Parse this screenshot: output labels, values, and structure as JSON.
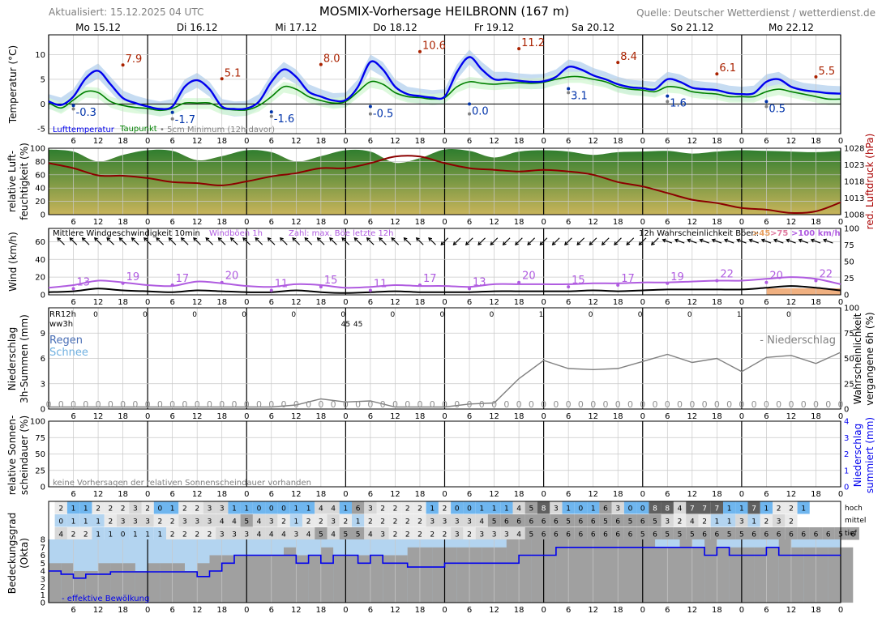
{
  "header": {
    "title": "MOSMIX-Vorhersage HEILBRONN (167 m)",
    "updated": "Aktualisiert: 15.12.2025 04 UTC",
    "source": "Quelle: Deutscher Wetterdienst / wetterdienst.de"
  },
  "days": [
    "Mo 15.12",
    "Di 16.12",
    "Mi 17.12",
    "Do 18.12",
    "Fr 19.12",
    "Sa 20.12",
    "So 21.12",
    "Mo 22.12"
  ],
  "hour_ticks": [
    "6",
    "12",
    "18",
    "0"
  ],
  "colors": {
    "temp": "#0000ee",
    "dew": "#008000",
    "min5": "#808080",
    "max_label": "#aa2200",
    "min_label": "#0033aa",
    "pressure": "#8b0000",
    "gust": "#b05ce0",
    "wind": "#000000",
    "precip_prob": "#808080",
    "cloud_gray": "#a0a0a0",
    "cloud_blue": "#b3d4f0"
  },
  "panels": {
    "temp": {
      "ylabel": "Temperatur (°C)",
      "ylim": [
        -6,
        14
      ],
      "ticks": [
        "-5",
        "0",
        "5",
        "10"
      ],
      "legend": [
        "Lufttemperatur",
        "Taupunkt",
        "• 5cm Minimum (12h davor)"
      ]
    },
    "humidity": {
      "ylabel": "relative Luft-feuchtigkeit (%)",
      "ylabel_lines": [
        "relative Luft-",
        "feuchtigkeit (%)"
      ],
      "ylim": [
        0,
        100
      ],
      "ticks": [
        "0",
        "20",
        "40",
        "60",
        "80",
        "100"
      ],
      "ylabel_right": "red. Luftdruck (hPa)",
      "ylim_right": [
        1008,
        1028
      ],
      "ticks_right": [
        "1008",
        "1013",
        "1018",
        "1023",
        "1028"
      ]
    },
    "wind": {
      "ylabel": "Wind (km/h)",
      "ylim": [
        0,
        75
      ],
      "ticks": [
        "0",
        "20",
        "40",
        "60"
      ],
      "ticks_right": [
        "0",
        "25",
        "50",
        "75",
        "100"
      ],
      "legend": [
        "Mittlere Windgeschwindigkeit 10min",
        "Windböen 1h",
        "Zahl: max. Böe letzte 12h",
        "12h Wahrscheinlichkeit Böen:",
        ">45",
        ">75",
        ">100 km/h"
      ]
    },
    "precip": {
      "ylabel_lines": [
        "Niederschlag",
        "3h-Summen (mm)"
      ],
      "ylim": [
        0,
        12
      ],
      "ticks": [
        "0",
        "3",
        "6",
        "9"
      ],
      "ylabel_right_lines": [
        "Wahrscheinlichkeit",
        "vergangene 6h (%)"
      ],
      "ticks_right": [
        "0",
        "25",
        "50",
        "75",
        "100"
      ],
      "labels": [
        "RR12h",
        "ww3h"
      ],
      "rain": "Regen",
      "snow": "Schnee",
      "prob_legend": "- Niederschlag"
    },
    "sun": {
      "ylabel_lines": [
        "relative Sonnen-",
        "scheindauer (%)"
      ],
      "ticks": [
        "0",
        "25",
        "50",
        "75",
        "100"
      ],
      "ylabel_right_lines": [
        "Niederschlag",
        "summiert (mm)"
      ],
      "ticks_right": [
        "0",
        "1",
        "2",
        "3",
        "4"
      ],
      "note": "keine Vorhersagen der relativen Sonnenscheindauer vorhanden"
    },
    "cloud": {
      "ylabel_lines": [
        "Bedeckungsgrad",
        "(Okta)"
      ],
      "ticks": [
        "0",
        "1",
        "2",
        "3",
        "4",
        "5",
        "6",
        "7",
        "8"
      ],
      "row_labels": [
        "hoch",
        "mittel",
        "tief"
      ],
      "legend": "- effektive Bewölkung"
    }
  },
  "chart_data": {
    "type": "line",
    "x_unit": "hours since 15.12.2025 00 UTC",
    "temperature": {
      "x": [
        0,
        3,
        6,
        9,
        12,
        15,
        18,
        21,
        24,
        27,
        30,
        33,
        36,
        39,
        42,
        45,
        48,
        51,
        54,
        57,
        60,
        63,
        66,
        69,
        72,
        75,
        78,
        81,
        84,
        87,
        90,
        93,
        96,
        99,
        102,
        105,
        108,
        111,
        114,
        117,
        120,
        123,
        126,
        129,
        132,
        135,
        138,
        141,
        144,
        147,
        150,
        153,
        156,
        159,
        162,
        165,
        168,
        171,
        174,
        177,
        180,
        183,
        186,
        189,
        192
      ],
      "air": [
        0.5,
        -0.2,
        1.5,
        5.2,
        6.7,
        4.0,
        1.2,
        0.2,
        -0.5,
        -1.0,
        -0.5,
        3.5,
        4.8,
        3.0,
        -0.5,
        -1.0,
        -0.9,
        0.5,
        4.5,
        7.0,
        5.5,
        2.5,
        1.5,
        0.7,
        0.8,
        3.5,
        8.5,
        7.0,
        3.5,
        2.0,
        1.6,
        1.3,
        1.5,
        6.5,
        9.5,
        7.0,
        5.0,
        5.0,
        4.7,
        4.5,
        4.6,
        5.5,
        7.5,
        7.0,
        5.8,
        5.0,
        4.0,
        3.4,
        3.2,
        3.0,
        5.0,
        4.5,
        3.3,
        3.0,
        2.8,
        2.2,
        2.0,
        2.2,
        4.5,
        5.0,
        3.5,
        2.8,
        2.5,
        2.2,
        2.1
      ],
      "dew": [
        0.3,
        -0.8,
        0.8,
        2.5,
        2.3,
        0.5,
        -0.3,
        -0.7,
        -0.9,
        -1.3,
        -0.9,
        0.2,
        0.2,
        0.2,
        -0.9,
        -1.2,
        -1.2,
        -0.3,
        1.5,
        3.5,
        3.0,
        1.5,
        0.7,
        0.2,
        0.5,
        2.5,
        4.5,
        4.0,
        2.3,
        1.5,
        1.3,
        1.0,
        1.3,
        3.5,
        4.5,
        4.2,
        4.0,
        4.2,
        4.3,
        4.2,
        4.4,
        5.0,
        5.5,
        5.5,
        5.0,
        4.5,
        3.5,
        3.0,
        2.8,
        2.5,
        3.5,
        3.3,
        2.5,
        2.2,
        2.0,
        1.5,
        1.5,
        1.5,
        2.5,
        3.0,
        2.5,
        2.0,
        1.5,
        1.0,
        1.0
      ]
    },
    "temp_max_labels": [
      {
        "x": 18,
        "value": 7.9
      },
      {
        "x": 42,
        "value": 5.1
      },
      {
        "x": 66,
        "value": 8.0
      },
      {
        "x": 90,
        "value": 10.6
      },
      {
        "x": 114,
        "value": 11.2
      },
      {
        "x": 138,
        "value": 8.4
      },
      {
        "x": 162,
        "value": 6.1
      },
      {
        "x": 186,
        "value": 5.5
      }
    ],
    "temp_min_labels": [
      {
        "x": 6,
        "value": -0.3
      },
      {
        "x": 30,
        "value": -1.7
      },
      {
        "x": 54,
        "value": -1.6
      },
      {
        "x": 78,
        "value": -0.5
      },
      {
        "x": 102,
        "value": -0.0
      },
      {
        "x": 126,
        "value": 3.1
      },
      {
        "x": 150,
        "value": 1.6
      },
      {
        "x": 174,
        "value": 0.5
      }
    ],
    "ground_min_5cm": [
      {
        "x": 6,
        "value": -1.0
      },
      {
        "x": 30,
        "value": -3.0
      },
      {
        "x": 54,
        "value": -2.5
      },
      {
        "x": 78,
        "value": -2.0
      },
      {
        "x": 102,
        "value": -2.0
      },
      {
        "x": 126,
        "value": 2.3
      },
      {
        "x": 150,
        "value": 0.5
      },
      {
        "x": 174,
        "value": -0.5
      }
    ],
    "pressure_hPa": {
      "x": [
        0,
        6,
        12,
        18,
        24,
        30,
        36,
        42,
        48,
        54,
        60,
        66,
        72,
        78,
        84,
        90,
        96,
        102,
        108,
        114,
        120,
        126,
        132,
        138,
        144,
        150,
        156,
        162,
        168,
        174,
        180,
        186,
        192
      ],
      "values": [
        1023.5,
        1022.0,
        1019.8,
        1019.7,
        1019.0,
        1017.8,
        1017.5,
        1016.8,
        1018.0,
        1019.5,
        1020.5,
        1022.0,
        1022.0,
        1023.5,
        1025.5,
        1025.5,
        1023.5,
        1022.0,
        1021.5,
        1021.0,
        1021.5,
        1021.0,
        1020.0,
        1017.8,
        1016.5,
        1014.5,
        1012.5,
        1011.5,
        1010.0,
        1009.5,
        1008.5,
        1009.0,
        1011.7
      ]
    },
    "humidity_pct": {
      "x": [
        0,
        6,
        12,
        18,
        24,
        30,
        36,
        42,
        48,
        54,
        60,
        66,
        72,
        78,
        84,
        90,
        96,
        102,
        108,
        114,
        120,
        126,
        132,
        138,
        144,
        150,
        156,
        162,
        168,
        174,
        180,
        186,
        192
      ],
      "values": [
        98,
        95,
        80,
        90,
        97,
        96,
        82,
        88,
        97,
        94,
        80,
        88,
        97,
        95,
        78,
        85,
        98,
        96,
        86,
        95,
        97,
        95,
        90,
        94,
        95,
        96,
        92,
        95,
        97,
        96,
        95,
        94,
        96
      ]
    },
    "wind_kmh": {
      "x": [
        0,
        6,
        12,
        18,
        24,
        30,
        36,
        42,
        48,
        54,
        60,
        66,
        72,
        78,
        84,
        90,
        96,
        102,
        108,
        114,
        120,
        126,
        132,
        138,
        144,
        150,
        156,
        162,
        168,
        174,
        180,
        186,
        192
      ],
      "mean": [
        3,
        4,
        7,
        5,
        4,
        3,
        5,
        4,
        3,
        3,
        5,
        3,
        2,
        3,
        4,
        3,
        3,
        3,
        4,
        4,
        4,
        4,
        5,
        4,
        5,
        6,
        6,
        6,
        6,
        8,
        10,
        8,
        5
      ],
      "gust": [
        8,
        11,
        16,
        14,
        11,
        10,
        15,
        13,
        10,
        9,
        12,
        11,
        8,
        9,
        11,
        10,
        10,
        9,
        12,
        12,
        12,
        12,
        13,
        13,
        14,
        14,
        15,
        16,
        16,
        18,
        20,
        18,
        12
      ]
    },
    "gust_max_12h": [
      {
        "x": 6,
        "value": 13
      },
      {
        "x": 18,
        "value": 19
      },
      {
        "x": 30,
        "value": 17
      },
      {
        "x": 42,
        "value": 20
      },
      {
        "x": 54,
        "value": 11
      },
      {
        "x": 66,
        "value": 15
      },
      {
        "x": 78,
        "value": 11
      },
      {
        "x": 90,
        "value": 17
      },
      {
        "x": 102,
        "value": 13
      },
      {
        "x": 114,
        "value": 20
      },
      {
        "x": 126,
        "value": 15
      },
      {
        "x": 138,
        "value": 17
      },
      {
        "x": 150,
        "value": 19
      },
      {
        "x": 162,
        "value": 22
      },
      {
        "x": 174,
        "value": 20
      },
      {
        "x": 186,
        "value": 22
      }
    ],
    "rr12h": [
      {
        "x": 12,
        "value": "0"
      },
      {
        "x": 24,
        "value": "0"
      },
      {
        "x": 36,
        "value": "0"
      },
      {
        "x": 48,
        "value": "0"
      },
      {
        "x": 60,
        "value": "0"
      },
      {
        "x": 72,
        "value": "0"
      },
      {
        "x": 84,
        "value": "0"
      },
      {
        "x": 96,
        "value": "0"
      },
      {
        "x": 108,
        "value": "0"
      },
      {
        "x": 120,
        "value": "1"
      },
      {
        "x": 132,
        "value": "0"
      },
      {
        "x": 144,
        "value": "0"
      },
      {
        "x": 156,
        "value": "0"
      },
      {
        "x": 168,
        "value": "1"
      },
      {
        "x": 180,
        "value": "0"
      }
    ],
    "ww3h": [
      {
        "x": 72,
        "value": "45"
      },
      {
        "x": 75,
        "value": "45"
      }
    ],
    "precip_3h_mm": {
      "values": [
        0,
        0,
        0,
        0,
        0,
        0,
        0,
        0,
        0,
        0,
        0,
        0,
        0,
        0,
        0,
        0,
        0,
        0,
        0,
        0,
        0,
        0,
        0,
        0,
        0,
        0,
        0,
        0,
        0,
        0,
        0,
        0,
        0,
        0,
        0,
        0,
        0,
        0,
        0,
        0,
        0,
        0,
        0,
        0,
        0,
        0,
        0,
        0,
        0,
        0,
        0,
        0,
        0,
        0,
        0,
        0,
        0,
        0,
        0,
        0,
        0,
        0,
        0,
        0,
        0
      ]
    },
    "precip_prob_6h_pct": {
      "x": [
        0,
        6,
        12,
        18,
        24,
        30,
        36,
        42,
        48,
        54,
        60,
        66,
        72,
        78,
        84,
        90,
        96,
        102,
        108,
        114,
        120,
        126,
        132,
        138,
        144,
        150,
        156,
        162,
        168,
        174,
        180,
        186,
        192
      ],
      "values": [
        2,
        2,
        2,
        2,
        2,
        2,
        2,
        2,
        2,
        2,
        4,
        10,
        7,
        8,
        2,
        2,
        2,
        5,
        6,
        30,
        48,
        40,
        39,
        40,
        47,
        54,
        46,
        50,
        37,
        51,
        53,
        45,
        56
      ]
    },
    "cloud_layers": {
      "x_start": 3,
      "x_step": 3,
      "hoch": [
        "2",
        "1",
        "1",
        "2",
        "2",
        "2",
        "3",
        "2",
        "0",
        "1",
        "2",
        "2",
        "3",
        "3",
        "1",
        "1",
        "0",
        "0",
        "0",
        "1",
        "1",
        "4",
        "4",
        "1",
        "6",
        "3",
        "2",
        "2",
        "2",
        "2",
        "1",
        "2",
        "0",
        "0",
        "1",
        "1",
        "1",
        "4",
        "5",
        "8",
        "3",
        "1",
        "0",
        "1",
        "6",
        "3",
        "0",
        "0",
        "8",
        "8",
        "4",
        "7",
        "7",
        "7",
        "1",
        "1",
        "7",
        "1",
        "2",
        "2",
        "1",
        ""
      ],
      "mittel": [
        "0",
        "1",
        "1",
        "1",
        "2",
        "3",
        "3",
        "3",
        "2",
        "2",
        "3",
        "3",
        "3",
        "4",
        "4",
        "5",
        "4",
        "3",
        "2",
        "1",
        "2",
        "2",
        "3",
        "2",
        "1",
        "2",
        "2",
        "2",
        "2",
        "2",
        "3",
        "3",
        "3",
        "3",
        "4",
        "5",
        "6",
        "6",
        "6",
        "6",
        "6",
        "5",
        "6",
        "6",
        "5",
        "6",
        "5",
        "6",
        "5",
        "3",
        "2",
        "4",
        "2",
        "1",
        "1",
        "3",
        "1",
        "2",
        "3",
        "2",
        "",
        ""
      ],
      "tief": [
        "4",
        "2",
        "2",
        "1",
        "1",
        "0",
        "1",
        "1",
        "1",
        "2",
        "2",
        "2",
        "2",
        "3",
        "3",
        "3",
        "4",
        "4",
        "4",
        "3",
        "4",
        "5",
        "4",
        "5",
        "5",
        "4",
        "3",
        "2",
        "2",
        "2",
        "2",
        "2",
        "3",
        "2",
        "3",
        "3",
        "3",
        "4",
        "5",
        "6",
        "6",
        "6",
        "6",
        "6",
        "6",
        "6",
        "6",
        "5",
        "6",
        "5",
        "5",
        "5",
        "6",
        "6",
        "5",
        "5",
        "6",
        "6",
        "6",
        "6",
        "6",
        "6",
        "6",
        "5",
        "6"
      ]
    },
    "cloud_total_okta": {
      "x_start": 0,
      "x_step": 3,
      "values": [
        5,
        5,
        4,
        4,
        5,
        5,
        5,
        4,
        5,
        5,
        5,
        4,
        5,
        6,
        6,
        6,
        6,
        6,
        6,
        7,
        6,
        6,
        7,
        6,
        6,
        6,
        6,
        6,
        6,
        7,
        7,
        7,
        7,
        7,
        7,
        7,
        7,
        8,
        8,
        8,
        8,
        8,
        8,
        8,
        8,
        8,
        8,
        8,
        8,
        7,
        7,
        8,
        7,
        8,
        7,
        7,
        7,
        7,
        7,
        8,
        7,
        7,
        7,
        7,
        7
      ]
    },
    "cloud_effective_okta": {
      "x": [
        0,
        3,
        6,
        9,
        12,
        15,
        18,
        21,
        24,
        27,
        30,
        33,
        36,
        39,
        42,
        45,
        48,
        51,
        54,
        57,
        60,
        63,
        66,
        69,
        72,
        75,
        78,
        81,
        84,
        87,
        90,
        93,
        96,
        99,
        102,
        105,
        108,
        111,
        114,
        117,
        120,
        123,
        126,
        129,
        132,
        135,
        138,
        141,
        144,
        147,
        150,
        153,
        156,
        159,
        162,
        165,
        168,
        171,
        174,
        177,
        180,
        183,
        186,
        189,
        192
      ],
      "values": [
        4,
        3.6,
        3.1,
        3.6,
        3.6,
        3.9,
        3.9,
        3.9,
        3.9,
        3.9,
        3.9,
        3.9,
        3.3,
        4,
        5,
        6,
        6,
        6,
        6,
        6,
        5,
        6,
        5,
        6,
        6,
        5,
        6,
        5,
        5,
        4.5,
        4.5,
        4.5,
        5,
        5,
        5,
        5,
        5,
        5,
        6,
        6,
        6,
        7,
        7,
        7,
        7,
        7,
        7,
        7,
        7,
        7,
        7,
        7,
        7,
        6,
        7,
        6,
        6,
        6,
        7,
        6,
        6,
        6,
        6,
        6,
        6
      ]
    }
  }
}
